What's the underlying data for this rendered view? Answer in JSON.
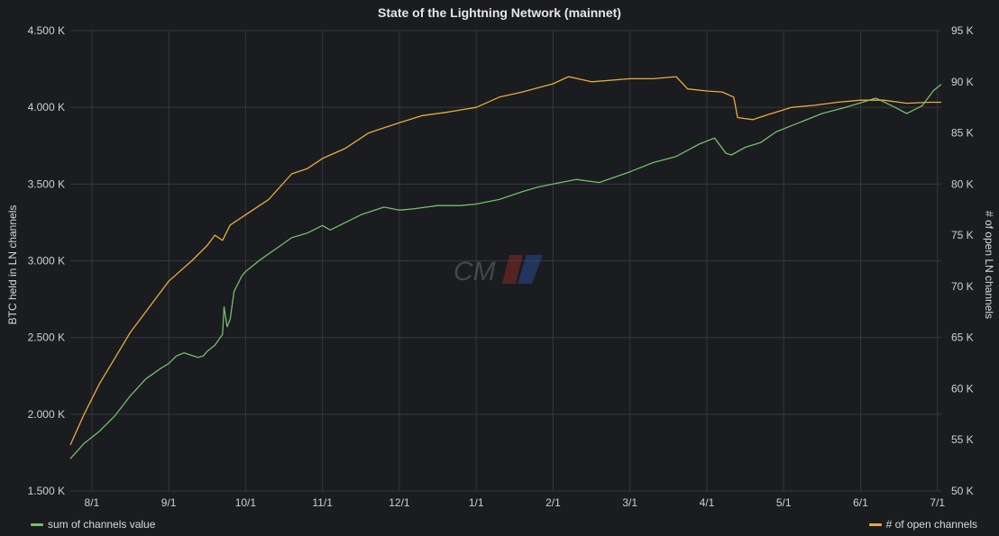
{
  "panel": {
    "title": "State of the Lightning Network (mainnet)"
  },
  "chart_data": {
    "type": "line",
    "title": "State of the Lightning Network (mainnet)",
    "x_ticks": [
      "8/1",
      "9/1",
      "10/1",
      "11/1",
      "12/1",
      "1/1",
      "2/1",
      "3/1",
      "4/1",
      "5/1",
      "6/1",
      "7/1"
    ],
    "x_range": [
      -0.28,
      11.05
    ],
    "y_left": {
      "label": "BTC held in LN channels",
      "range": [
        1500,
        4500
      ],
      "ticks": [
        1500,
        2000,
        2500,
        3000,
        3500,
        4000,
        4500
      ],
      "tick_labels": [
        "1.500 K",
        "2.000 K",
        "2.500 K",
        "3.000 K",
        "3.500 K",
        "4.000 K",
        "4.500 K"
      ]
    },
    "y_right": {
      "label": "# of open LN channels",
      "range": [
        50000,
        95000
      ],
      "ticks": [
        50000,
        55000,
        60000,
        65000,
        70000,
        75000,
        80000,
        85000,
        90000,
        95000
      ],
      "tick_labels": [
        "50 K",
        "55 K",
        "60 K",
        "65 K",
        "70 K",
        "75 K",
        "80 K",
        "85 K",
        "90 K",
        "95 K"
      ]
    },
    "grid": true,
    "watermark": "CM",
    "series": [
      {
        "name": "sum of channels value",
        "axis": "left",
        "color": "#73bf69",
        "x": [
          -0.28,
          -0.1,
          0.1,
          0.3,
          0.5,
          0.7,
          0.9,
          1.0,
          1.1,
          1.2,
          1.38,
          1.45,
          1.5,
          1.6,
          1.7,
          1.72,
          1.76,
          1.8,
          1.85,
          1.9,
          1.95,
          2.0,
          2.2,
          2.4,
          2.6,
          2.8,
          3.0,
          3.1,
          3.3,
          3.5,
          3.8,
          4.0,
          4.2,
          4.5,
          4.8,
          5.0,
          5.3,
          5.6,
          5.8,
          6.0,
          6.3,
          6.6,
          7.0,
          7.3,
          7.6,
          7.9,
          8.1,
          8.25,
          8.32,
          8.5,
          8.7,
          8.9,
          9.2,
          9.5,
          9.8,
          10.0,
          10.2,
          10.45,
          10.6,
          10.8,
          10.95,
          11.05
        ],
        "values": [
          1710,
          1810,
          1890,
          1990,
          2120,
          2230,
          2300,
          2330,
          2380,
          2400,
          2370,
          2380,
          2410,
          2450,
          2520,
          2700,
          2570,
          2620,
          2800,
          2850,
          2900,
          2930,
          3010,
          3080,
          3150,
          3180,
          3230,
          3200,
          3250,
          3300,
          3350,
          3330,
          3340,
          3360,
          3360,
          3370,
          3400,
          3450,
          3480,
          3500,
          3530,
          3510,
          3580,
          3640,
          3680,
          3760,
          3800,
          3700,
          3690,
          3740,
          3770,
          3840,
          3900,
          3960,
          4000,
          4030,
          4060,
          4000,
          3960,
          4010,
          4110,
          4150
        ]
      },
      {
        "name": "# of open channels",
        "axis": "right",
        "color": "#e8ac3c",
        "x": [
          -0.28,
          -0.1,
          0.1,
          0.3,
          0.5,
          0.8,
          1.0,
          1.3,
          1.5,
          1.6,
          1.7,
          1.8,
          2.0,
          2.3,
          2.6,
          2.8,
          3.0,
          3.3,
          3.6,
          3.8,
          4.0,
          4.3,
          4.6,
          5.0,
          5.3,
          5.6,
          6.0,
          6.2,
          6.5,
          7.0,
          7.3,
          7.6,
          7.75,
          8.0,
          8.2,
          8.35,
          8.4,
          8.6,
          8.8,
          9.1,
          9.4,
          9.7,
          10.0,
          10.3,
          10.6,
          10.9,
          11.05
        ],
        "values": [
          54500,
          57500,
          60500,
          63000,
          65500,
          68500,
          70500,
          72500,
          74000,
          75000,
          74500,
          76000,
          77000,
          78500,
          81000,
          81500,
          82500,
          83500,
          85000,
          85500,
          86000,
          86700,
          87000,
          87500,
          88500,
          89000,
          89800,
          90500,
          90000,
          90300,
          90300,
          90500,
          89300,
          89100,
          89000,
          88500,
          86500,
          86300,
          86800,
          87500,
          87700,
          88000,
          88200,
          88200,
          87900,
          88000,
          88000
        ]
      }
    ]
  }
}
